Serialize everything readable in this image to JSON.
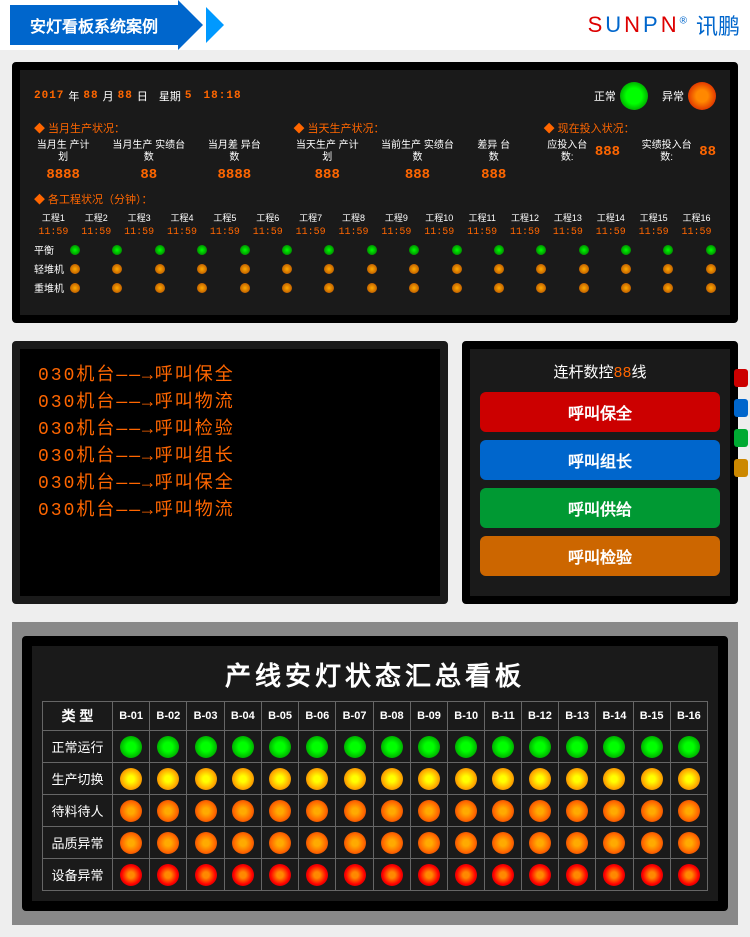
{
  "header": {
    "title": "安灯看板系统案例",
    "brand_en": "SUNPN",
    "brand_cn": "讯鹏"
  },
  "panel1": {
    "date_year": "2017",
    "date_mon": "88",
    "date_day": "88",
    "weekday_label": "星期",
    "weekday": "5",
    "time": "18:18",
    "normal_label": "正常",
    "abnormal_label": "异常",
    "sections": [
      {
        "title": "◆ 当月生产状况：",
        "cols": [
          {
            "t": "当月生\n产计划",
            "v": "8888"
          },
          {
            "t": "当月生产\n实绩台数",
            "v": "88"
          },
          {
            "t": "当月差\n异台数",
            "v": "8888"
          }
        ]
      },
      {
        "title": "◆ 当天生产状况：",
        "cols": [
          {
            "t": "当天生产\n产计划",
            "v": "888"
          },
          {
            "t": "当前生产\n实绩台数",
            "v": "888"
          },
          {
            "t": "差异\n台数",
            "v": "888"
          }
        ]
      },
      {
        "title": "◆ 现在投入状况：",
        "cols": [
          {
            "t": "应投入台数:",
            "v": "888",
            "inline": true
          },
          {
            "t": "实绩投入台数:",
            "v": "88",
            "inline": true
          }
        ]
      }
    ],
    "proc_header": "◆ 各工程状况（分钟）：",
    "processes": [
      "工程1",
      "工程2",
      "工程3",
      "工程4",
      "工程5",
      "工程6",
      "工程7",
      "工程8",
      "工程9",
      "工程10",
      "工程11",
      "工程12",
      "工程13",
      "工程14",
      "工程15",
      "工程16"
    ],
    "proc_val": "11:59",
    "light_rows": [
      "平衡",
      "轻堆机",
      "重堆机"
    ],
    "light_colors": [
      "l-green",
      "l-orange",
      "l-orange"
    ]
  },
  "panel2": {
    "lines": [
      "030机台——→呼叫保全",
      "030机台——→呼叫物流",
      "030机台——→呼叫检验",
      "030机台——→呼叫组长",
      "030机台——→呼叫保全",
      "030机台——→呼叫物流"
    ]
  },
  "panel3": {
    "title_pre": "连杆数控",
    "title_seg": "88",
    "title_post": "线",
    "buttons": [
      {
        "label": "呼叫保全",
        "cls": "b-red",
        "side": "#c00"
      },
      {
        "label": "呼叫组长",
        "cls": "b-blue",
        "side": "#06c"
      },
      {
        "label": "呼叫供给",
        "cls": "b-green",
        "side": "#0a3"
      },
      {
        "label": "呼叫检验",
        "cls": "b-orange",
        "side": "#c80"
      }
    ]
  },
  "panel4": {
    "title": "产线安灯状态汇总看板",
    "type_label": "类 型",
    "cols": [
      "B-01",
      "B-02",
      "B-03",
      "B-04",
      "B-05",
      "B-06",
      "B-07",
      "B-08",
      "B-09",
      "B-10",
      "B-11",
      "B-12",
      "B-13",
      "B-14",
      "B-15",
      "B-16"
    ],
    "rows": [
      {
        "label": "正常运行",
        "color": "tl-green"
      },
      {
        "label": "生产切换",
        "color": "tl-yellow"
      },
      {
        "label": "待料待人",
        "color": "tl-orange"
      },
      {
        "label": "品质异常",
        "color": "tl-orange"
      },
      {
        "label": "设备异常",
        "color": "tl-red"
      }
    ]
  }
}
